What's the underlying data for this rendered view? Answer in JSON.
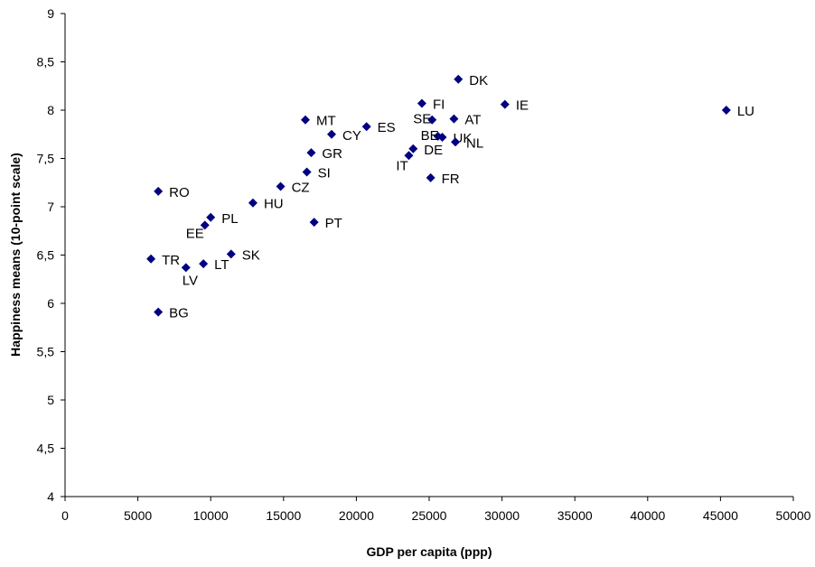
{
  "chart_data": {
    "type": "scatter",
    "title": "",
    "xlabel": "GDP per capita (ppp)",
    "ylabel": "Happiness means (10-point scale)",
    "xlim": [
      0,
      50000
    ],
    "ylim": [
      4,
      9
    ],
    "x_ticks": [
      "0",
      "5000",
      "10000",
      "15000",
      "20000",
      "25000",
      "30000",
      "35000",
      "40000",
      "45000",
      "50000"
    ],
    "y_ticks": [
      "4",
      "4,5",
      "5",
      "5,5",
      "6",
      "6,5",
      "7",
      "7,5",
      "8",
      "8,5",
      "9"
    ],
    "grid": false,
    "legend": "none",
    "marker_color": "#000080",
    "points": [
      {
        "label": "DK",
        "x": 27000,
        "y": 8.32
      },
      {
        "label": "FI",
        "x": 24500,
        "y": 8.07
      },
      {
        "label": "IE",
        "x": 30200,
        "y": 8.06
      },
      {
        "label": "LU",
        "x": 45400,
        "y": 8.0
      },
      {
        "label": "SE",
        "x": 25200,
        "y": 7.9
      },
      {
        "label": "AT",
        "x": 26700,
        "y": 7.91
      },
      {
        "label": "MT",
        "x": 16500,
        "y": 7.9
      },
      {
        "label": "ES",
        "x": 20700,
        "y": 7.83
      },
      {
        "label": "CY",
        "x": 18300,
        "y": 7.75
      },
      {
        "label": "BE",
        "x": 25600,
        "y": 7.73
      },
      {
        "label": "UK",
        "x": 25900,
        "y": 7.72
      },
      {
        "label": "NL",
        "x": 26800,
        "y": 7.67
      },
      {
        "label": "DE",
        "x": 23900,
        "y": 7.6
      },
      {
        "label": "IT",
        "x": 23600,
        "y": 7.53
      },
      {
        "label": "GR",
        "x": 16900,
        "y": 7.56
      },
      {
        "label": "SI",
        "x": 16600,
        "y": 7.36
      },
      {
        "label": "FR",
        "x": 25100,
        "y": 7.3
      },
      {
        "label": "CZ",
        "x": 14800,
        "y": 7.21
      },
      {
        "label": "RO",
        "x": 6400,
        "y": 7.16
      },
      {
        "label": "HU",
        "x": 12900,
        "y": 7.04
      },
      {
        "label": "PL",
        "x": 10000,
        "y": 6.89
      },
      {
        "label": "EE",
        "x": 9600,
        "y": 6.81
      },
      {
        "label": "PT",
        "x": 17100,
        "y": 6.84
      },
      {
        "label": "SK",
        "x": 11400,
        "y": 6.51
      },
      {
        "label": "TR",
        "x": 5900,
        "y": 6.46
      },
      {
        "label": "LT",
        "x": 9500,
        "y": 6.41
      },
      {
        "label": "LV",
        "x": 8300,
        "y": 6.37
      },
      {
        "label": "BG",
        "x": 6400,
        "y": 5.91
      }
    ]
  }
}
